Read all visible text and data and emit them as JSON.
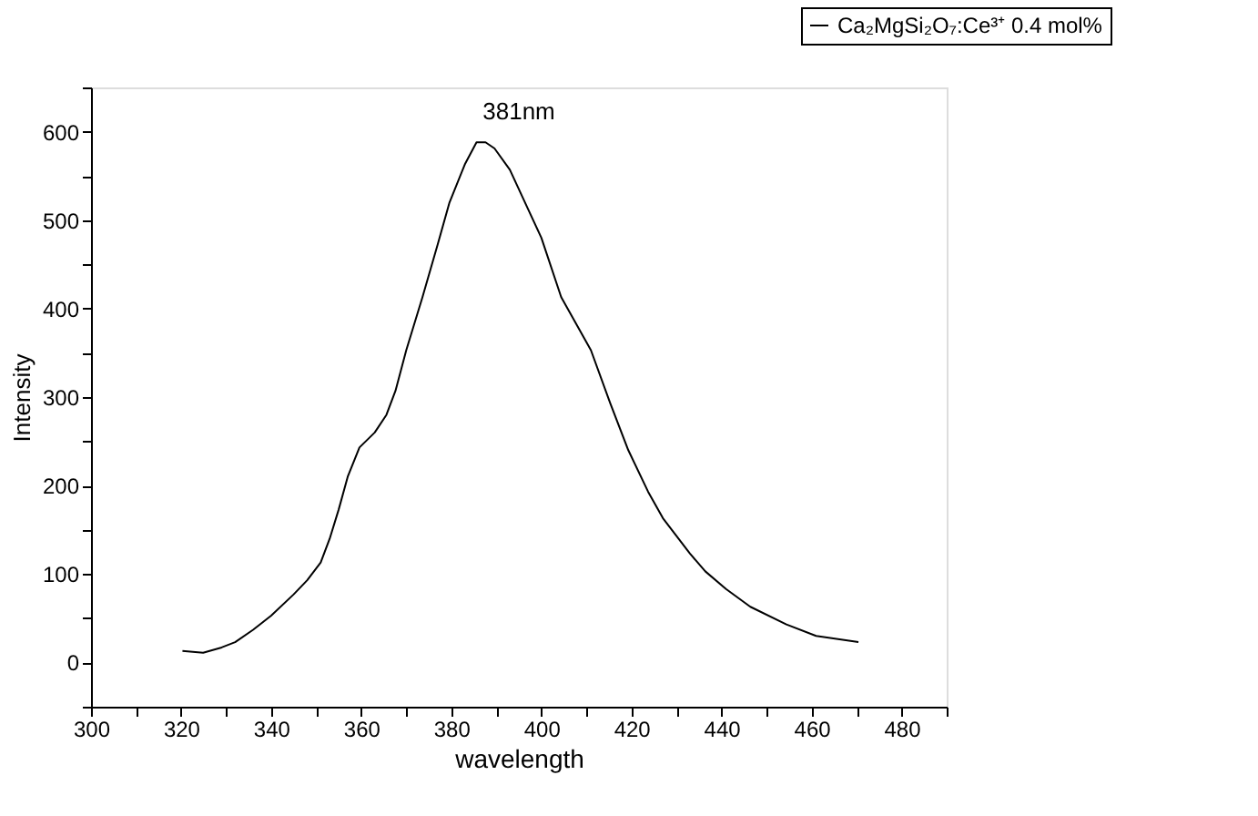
{
  "chart_data": {
    "type": "line",
    "xlabel": "wavelength",
    "ylabel": "Intensity",
    "xlim": [
      300,
      490
    ],
    "ylim": [
      -50,
      650
    ],
    "xticks": [
      300,
      {
        "value": 310,
        "label": null
      },
      320,
      {
        "value": 330,
        "label": null
      },
      340,
      {
        "value": 350,
        "label": null
      },
      360,
      {
        "value": 370,
        "label": null
      },
      380,
      {
        "value": 390,
        "label": null
      },
      400,
      {
        "value": 410,
        "label": null
      },
      420,
      {
        "value": 430,
        "label": null
      },
      440,
      {
        "value": 450,
        "label": null
      },
      460,
      {
        "value": 470,
        "label": null
      },
      480,
      {
        "value": 490,
        "label": null
      }
    ],
    "yticks": [
      {
        "value": -50,
        "label": null
      },
      0,
      {
        "value": 50,
        "label": null
      },
      100,
      {
        "value": 150,
        "label": null
      },
      200,
      {
        "value": 250,
        "label": null
      },
      300,
      {
        "value": 350,
        "label": null
      },
      400,
      {
        "value": 450,
        "label": null
      },
      500,
      {
        "value": 550,
        "label": null
      },
      600,
      {
        "value": 650,
        "label": null
      }
    ],
    "grid": false,
    "legend": "top right",
    "marker": "none",
    "line_style": "solid",
    "annotations": [
      "381nm"
    ],
    "series": [
      {
        "name": "Ca₂MgSi₂O₇:Ce³⁺ 0.4 mol%",
        "color": "#000000",
        "x": [
          320.3,
          324.9,
          329,
          332,
          336,
          340,
          345,
          348,
          351,
          353,
          355,
          357,
          359.6,
          363,
          365.6,
          367.6,
          370,
          373.6,
          377,
          379.6,
          383,
          385.6,
          387.6,
          389.6,
          393,
          397,
          400,
          404.4,
          411,
          415.3,
          419.3,
          423.7,
          427,
          433,
          436.4,
          441,
          446.4,
          454.4,
          461,
          470.4
        ],
        "values": [
          13,
          11,
          17,
          23,
          37,
          53,
          77,
          93,
          113,
          140,
          173,
          210,
          243,
          260,
          280,
          307,
          353,
          413,
          473,
          520,
          563,
          588,
          588,
          581,
          557,
          513,
          480,
          413,
          353,
          293,
          240,
          193,
          163,
          123,
          103,
          83,
          63,
          43,
          30,
          23
        ]
      }
    ]
  }
}
